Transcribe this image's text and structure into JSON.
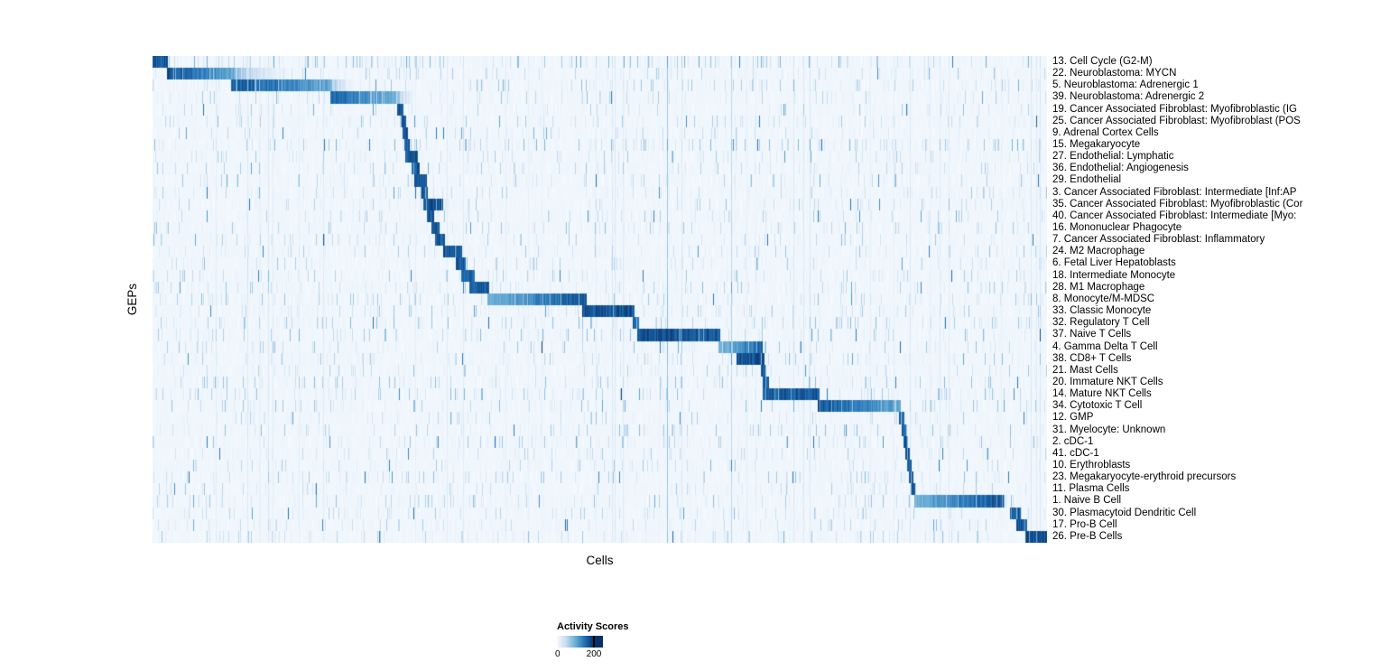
{
  "chart_data": {
    "type": "heatmap",
    "title": "",
    "xlabel": "Cells",
    "ylabel": "GEPs",
    "value_range": [
      0,
      200
    ],
    "colormap": {
      "name": "Blues",
      "stops": [
        "#f7fbff",
        "#c6dbef",
        "#6baed6",
        "#2171b5",
        "#08306b"
      ]
    },
    "legend": {
      "title": "Activity Scores",
      "position": "bottom",
      "tick_labels": [
        "0",
        "200"
      ],
      "tick_values": [
        0,
        200
      ]
    },
    "block_units": "fraction_of_x_axis",
    "rows": [
      {
        "label": "13. Cell Cycle (G2-M)",
        "block": [
          0.0,
          0.017
        ],
        "peak": 0.95,
        "profile": "flat",
        "noise": 0.5,
        "tail": 0
      },
      {
        "label": "22. Neuroblastoma: MYCN",
        "block": [
          0.016,
          0.09
        ],
        "peak": 0.97,
        "profile": "left",
        "noise": 0.25,
        "tail": 0.09
      },
      {
        "label": "5. Neuroblastoma: Adrenergic 1",
        "block": [
          0.087,
          0.198
        ],
        "peak": 0.97,
        "profile": "left",
        "noise": 0.25,
        "tail": 0.04
      },
      {
        "label": "39. Neuroblastoma: Adrenergic 2",
        "block": [
          0.198,
          0.273
        ],
        "peak": 0.9,
        "profile": "left",
        "noise": 0.2,
        "tail": 0.03
      },
      {
        "label": "19. Cancer Associated Fibroblast: Myofibroblastic (IG",
        "block": [
          0.273,
          0.28
        ],
        "peak": 0.95,
        "profile": "flat",
        "noise": 0.2,
        "tail": 0
      },
      {
        "label": "25. Cancer Associated Fibroblast: Myofibroblast (POS",
        "block": [
          0.277,
          0.283
        ],
        "peak": 0.95,
        "profile": "flat",
        "noise": 0.2,
        "tail": 0
      },
      {
        "label": "9. Adrenal Cortex Cells",
        "block": [
          0.279,
          0.285
        ],
        "peak": 0.95,
        "profile": "flat",
        "noise": 0.15,
        "tail": 0
      },
      {
        "label": "15. Megakaryocyte",
        "block": [
          0.281,
          0.287
        ],
        "peak": 0.95,
        "profile": "flat",
        "noise": 0.45,
        "tail": 0
      },
      {
        "label": "27. Endothelial: Lymphatic",
        "block": [
          0.282,
          0.296
        ],
        "peak": 0.96,
        "profile": "flat",
        "noise": 0.2,
        "tail": 0
      },
      {
        "label": "36. Endothelial: Angiogenesis",
        "block": [
          0.289,
          0.298
        ],
        "peak": 0.95,
        "profile": "flat",
        "noise": 0.2,
        "tail": 0
      },
      {
        "label": "29. Endothelial",
        "block": [
          0.292,
          0.306
        ],
        "peak": 0.96,
        "profile": "flat",
        "noise": 0.2,
        "tail": 0
      },
      {
        "label": "3. Cancer Associated Fibroblast: Intermediate [Inf:AP",
        "block": [
          0.299,
          0.307
        ],
        "peak": 0.93,
        "profile": "flat",
        "noise": 0.2,
        "tail": 0
      },
      {
        "label": "35. Cancer Associated Fibroblast: Myofibroblastic (Cor",
        "block": [
          0.302,
          0.324
        ],
        "peak": 0.96,
        "profile": "flat",
        "noise": 0.2,
        "tail": 0
      },
      {
        "label": "40. Cancer Associated Fibroblast: Intermediate [Myo:",
        "block": [
          0.306,
          0.314
        ],
        "peak": 0.93,
        "profile": "flat",
        "noise": 0.2,
        "tail": 0
      },
      {
        "label": "16. Mononuclear Phagocyte",
        "block": [
          0.311,
          0.32
        ],
        "peak": 0.94,
        "profile": "flat",
        "noise": 0.25,
        "tail": 0
      },
      {
        "label": "7. Cancer Associated Fibroblast: Inflammatory",
        "block": [
          0.315,
          0.326
        ],
        "peak": 0.94,
        "profile": "flat",
        "noise": 0.2,
        "tail": 0
      },
      {
        "label": "24. M2 Macrophage",
        "block": [
          0.324,
          0.346
        ],
        "peak": 0.95,
        "profile": "flat",
        "noise": 0.25,
        "tail": 0
      },
      {
        "label": "6. Fetal Liver Hepatoblasts",
        "block": [
          0.339,
          0.35
        ],
        "peak": 0.93,
        "profile": "flat",
        "noise": 0.2,
        "tail": 0
      },
      {
        "label": "18. Intermediate Monocyte",
        "block": [
          0.345,
          0.36
        ],
        "peak": 0.94,
        "profile": "flat",
        "noise": 0.25,
        "tail": 0
      },
      {
        "label": "28. M1 Macrophage",
        "block": [
          0.354,
          0.376
        ],
        "peak": 0.95,
        "profile": "flat",
        "noise": 0.25,
        "tail": 0
      },
      {
        "label": "8. Monocyte/M-MDSC",
        "block": [
          0.374,
          0.485
        ],
        "peak": 0.97,
        "profile": "right",
        "noise": 0.3,
        "tail": 0
      },
      {
        "label": "33. Classic Monocyte",
        "block": [
          0.48,
          0.538
        ],
        "peak": 0.97,
        "profile": "flat",
        "noise": 0.25,
        "tail": 0
      },
      {
        "label": "32. Regulatory T Cell",
        "block": [
          0.536,
          0.543
        ],
        "peak": 0.9,
        "profile": "flat",
        "noise": 0.35,
        "tail": 0
      },
      {
        "label": "37. Naive T Cells",
        "block": [
          0.541,
          0.634
        ],
        "peak": 0.96,
        "profile": "flat",
        "noise": 0.3,
        "tail": 0
      },
      {
        "label": "4. Gamma Delta T Cell",
        "block": [
          0.632,
          0.682
        ],
        "peak": 0.9,
        "profile": "right",
        "noise": 0.3,
        "tail": 0
      },
      {
        "label": "38. CD8+ T Cells",
        "block": [
          0.652,
          0.684
        ],
        "peak": 0.96,
        "profile": "flat",
        "noise": 0.3,
        "tail": 0
      },
      {
        "label": "21. Mast Cells",
        "block": [
          0.68,
          0.686
        ],
        "peak": 0.93,
        "profile": "flat",
        "noise": 0.2,
        "tail": 0
      },
      {
        "label": "20. Immature NKT Cells",
        "block": [
          0.682,
          0.689
        ],
        "peak": 0.93,
        "profile": "flat",
        "noise": 0.3,
        "tail": 0
      },
      {
        "label": "14. Mature NKT Cells",
        "block": [
          0.682,
          0.745
        ],
        "peak": 0.95,
        "profile": "flat",
        "noise": 0.35,
        "tail": 0
      },
      {
        "label": "34. Cytotoxic T Cell",
        "block": [
          0.743,
          0.836
        ],
        "peak": 0.96,
        "profile": "left",
        "noise": 0.35,
        "tail": 0
      },
      {
        "label": "12. GMP",
        "block": [
          0.834,
          0.84
        ],
        "peak": 0.93,
        "profile": "flat",
        "noise": 0.2,
        "tail": 0
      },
      {
        "label": "31. Myelocyte: Unknown",
        "block": [
          0.837,
          0.842
        ],
        "peak": 0.92,
        "profile": "flat",
        "noise": 0.3,
        "tail": 0
      },
      {
        "label": "2. cDC-1",
        "block": [
          0.839,
          0.844
        ],
        "peak": 0.93,
        "profile": "flat",
        "noise": 0.25,
        "tail": 0
      },
      {
        "label": "41. cDC-1",
        "block": [
          0.841,
          0.846
        ],
        "peak": 0.92,
        "profile": "flat",
        "noise": 0.2,
        "tail": 0
      },
      {
        "label": "10. Erythroblasts",
        "block": [
          0.843,
          0.848
        ],
        "peak": 0.93,
        "profile": "flat",
        "noise": 0.2,
        "tail": 0
      },
      {
        "label": "23. Megakaryocyte-erythroid precursors",
        "block": [
          0.845,
          0.85
        ],
        "peak": 0.92,
        "profile": "flat",
        "noise": 0.25,
        "tail": 0
      },
      {
        "label": "11. Plasma Cells",
        "block": [
          0.847,
          0.852
        ],
        "peak": 0.93,
        "profile": "flat",
        "noise": 0.2,
        "tail": 0
      },
      {
        "label": "1. Naive B Cell",
        "block": [
          0.851,
          0.952
        ],
        "peak": 0.97,
        "profile": "right",
        "noise": 0.25,
        "tail": 0
      },
      {
        "label": "30. Plasmacytoid Dendritic Cell",
        "block": [
          0.958,
          0.97
        ],
        "peak": 0.95,
        "profile": "flat",
        "noise": 0.25,
        "tail": 0
      },
      {
        "label": "17. Pro-B Cell",
        "block": [
          0.965,
          0.977
        ],
        "peak": 0.95,
        "profile": "flat",
        "noise": 0.2,
        "tail": 0
      },
      {
        "label": "26. Pre-B Cells",
        "block": [
          0.975,
          1.0
        ],
        "peak": 0.97,
        "profile": "flat",
        "noise": 0.25,
        "tail": 0
      }
    ]
  }
}
